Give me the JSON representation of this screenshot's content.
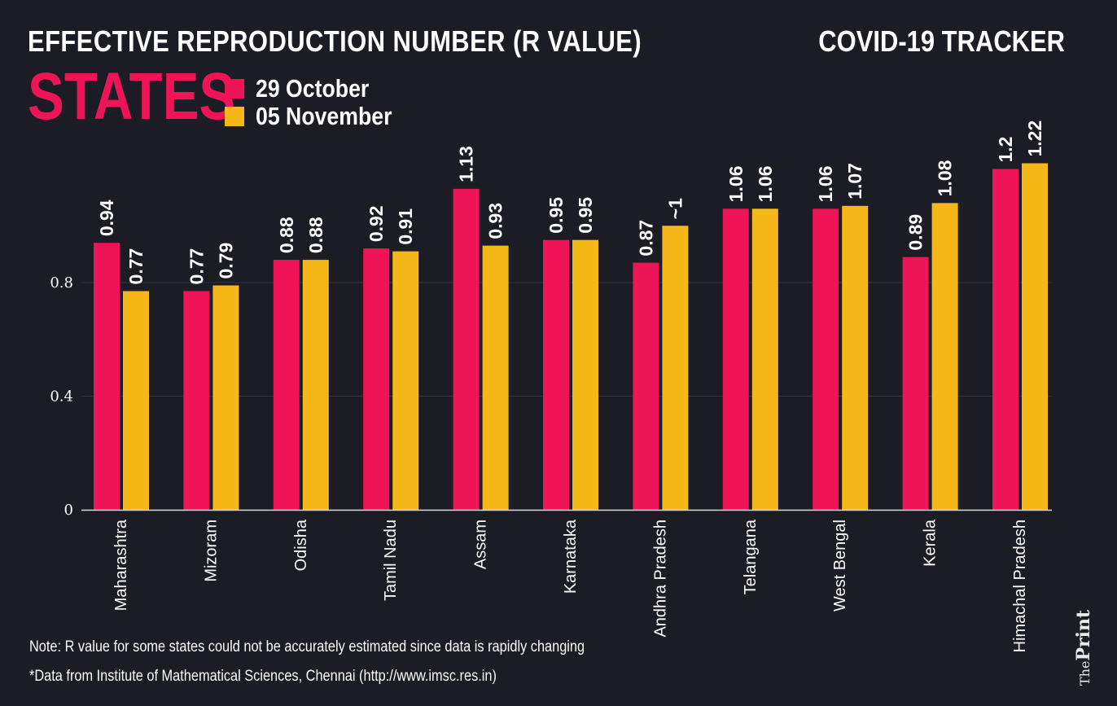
{
  "header": {
    "title": "EFFECTIVE REPRODUCTION NUMBER (R VALUE)",
    "tracker": "COVID-19 TRACKER",
    "subtitle": "STATES"
  },
  "legend": [
    {
      "label": "29 October",
      "color": "#ee1457"
    },
    {
      "label": "05 November",
      "color": "#f5b818"
    }
  ],
  "chart_data": {
    "type": "bar",
    "title": "EFFECTIVE REPRODUCTION NUMBER (R VALUE)",
    "xlabel": "",
    "ylabel": "",
    "ylim": [
      0,
      1.22
    ],
    "yticks": [
      0,
      0.4,
      0.8
    ],
    "ytick_labels": [
      "0",
      "0.4",
      "0.8"
    ],
    "grid": true,
    "categories": [
      "Maharashtra",
      "Mizoram",
      "Odisha",
      "Tamil Nadu",
      "Assam",
      "Karnataka",
      "Andhra Pradesh",
      "Telangana",
      "West Bengal",
      "Kerala",
      "Himachal Pradesh"
    ],
    "series": [
      {
        "name": "29 October",
        "color": "#ee1457",
        "values": [
          0.94,
          0.77,
          0.88,
          0.92,
          1.13,
          0.95,
          0.87,
          1.06,
          1.06,
          0.89,
          1.2
        ],
        "labels": [
          "0.94",
          "0.77",
          "0.88",
          "0.92",
          "1.13",
          "0.95",
          "0.87",
          "1.06",
          "1.06",
          "0.89",
          "1.2"
        ]
      },
      {
        "name": "05 November",
        "color": "#f5b818",
        "values": [
          0.77,
          0.79,
          0.88,
          0.91,
          0.93,
          0.95,
          1.0,
          1.06,
          1.07,
          1.08,
          1.22
        ],
        "labels": [
          "0.77",
          "0.79",
          "0.88",
          "0.91",
          "0.93",
          "0.95",
          "~1",
          "1.06",
          "1.07",
          "1.08",
          "1.22"
        ]
      }
    ]
  },
  "footer": {
    "note": "Note: R value for some states could not be accurately estimated since data is rapidly changing",
    "source": "*Data from Institute of Mathematical Sciences, Chennai (http://www.imsc.res.in)",
    "logo_the": "The",
    "logo_print": "Print"
  }
}
